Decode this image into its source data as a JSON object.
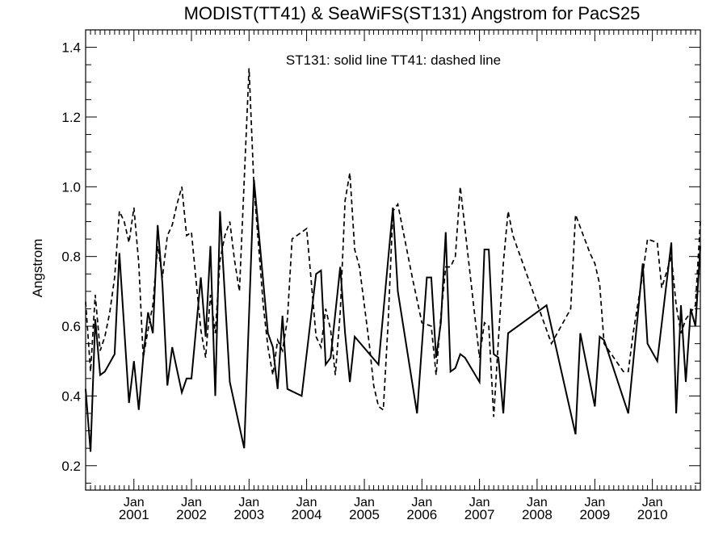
{
  "chart_data": {
    "type": "line",
    "title": "MODIST(TT41) & SeaWiFS(ST131)  Angstrom for PacS25",
    "annotation": "ST131: solid line   TT41: dashed line",
    "ylabel": "Angstrom",
    "xlabel": "",
    "xlim": [
      "2000-03-01",
      "2010-11-01"
    ],
    "ylim": [
      0.13,
      1.45
    ],
    "yticks": [
      0.2,
      0.4,
      0.6,
      0.8,
      1.0,
      1.2,
      1.4
    ],
    "ytick_labels": [
      "0.2",
      "0.4",
      "0.6",
      "0.8",
      "1.0",
      "1.2",
      "1.4"
    ],
    "xticks": [
      {
        "month": "Jan",
        "year": "2001",
        "date": "2001-01-01"
      },
      {
        "month": "Jan",
        "year": "2002",
        "date": "2002-01-01"
      },
      {
        "month": "Jan",
        "year": "2003",
        "date": "2003-01-01"
      },
      {
        "month": "Jan",
        "year": "2004",
        "date": "2004-01-01"
      },
      {
        "month": "Jan",
        "year": "2005",
        "date": "2005-01-01"
      },
      {
        "month": "Jan",
        "year": "2006",
        "date": "2006-01-01"
      },
      {
        "month": "Jan",
        "year": "2007",
        "date": "2007-01-01"
      },
      {
        "month": "Jan",
        "year": "2008",
        "date": "2008-01-01"
      },
      {
        "month": "Jan",
        "year": "2009",
        "date": "2009-01-01"
      },
      {
        "month": "Jan",
        "year": "2010",
        "date": "2010-01-01"
      }
    ],
    "series": [
      {
        "name": "ST131",
        "style": "solid",
        "points": [
          [
            "2000-03-01",
            0.42
          ],
          [
            "2000-04-01",
            0.24
          ],
          [
            "2000-05-01",
            0.62
          ],
          [
            "2000-06-01",
            0.46
          ],
          [
            "2000-07-01",
            0.47
          ],
          [
            "2000-09-01",
            0.52
          ],
          [
            "2000-10-01",
            0.81
          ],
          [
            "2000-12-01",
            0.38
          ],
          [
            "2001-01-01",
            0.5
          ],
          [
            "2001-02-01",
            0.36
          ],
          [
            "2001-03-01",
            0.51
          ],
          [
            "2001-04-01",
            0.64
          ],
          [
            "2001-05-01",
            0.58
          ],
          [
            "2001-06-01",
            0.89
          ],
          [
            "2001-07-01",
            0.72
          ],
          [
            "2001-08-01",
            0.43
          ],
          [
            "2001-09-01",
            0.54
          ],
          [
            "2001-11-01",
            0.41
          ],
          [
            "2001-12-01",
            0.45
          ],
          [
            "2002-01-01",
            0.45
          ],
          [
            "2002-03-01",
            0.74
          ],
          [
            "2002-04-01",
            0.57
          ],
          [
            "2002-05-01",
            0.83
          ],
          [
            "2002-06-01",
            0.4
          ],
          [
            "2002-07-01",
            0.93
          ],
          [
            "2002-09-01",
            0.44
          ],
          [
            "2002-12-01",
            0.25
          ],
          [
            "2003-02-01",
            1.02
          ],
          [
            "2003-05-01",
            0.58
          ],
          [
            "2003-06-01",
            0.54
          ],
          [
            "2003-07-01",
            0.42
          ],
          [
            "2003-08-01",
            0.63
          ],
          [
            "2003-09-01",
            0.42
          ],
          [
            "2003-12-01",
            0.4
          ],
          [
            "2004-03-01",
            0.75
          ],
          [
            "2004-04-01",
            0.76
          ],
          [
            "2004-05-01",
            0.49
          ],
          [
            "2004-06-01",
            0.51
          ],
          [
            "2004-08-01",
            0.77
          ],
          [
            "2004-09-01",
            0.58
          ],
          [
            "2004-10-01",
            0.44
          ],
          [
            "2004-11-01",
            0.57
          ],
          [
            "2005-04-01",
            0.49
          ],
          [
            "2005-07-01",
            0.94
          ],
          [
            "2005-08-01",
            0.7
          ],
          [
            "2005-12-01",
            0.35
          ],
          [
            "2006-02-01",
            0.74
          ],
          [
            "2006-03-01",
            0.74
          ],
          [
            "2006-04-01",
            0.51
          ],
          [
            "2006-05-01",
            0.61
          ],
          [
            "2006-06-01",
            0.87
          ],
          [
            "2006-07-01",
            0.47
          ],
          [
            "2006-08-01",
            0.48
          ],
          [
            "2006-09-01",
            0.52
          ],
          [
            "2006-10-01",
            0.51
          ],
          [
            "2007-01-01",
            0.44
          ],
          [
            "2007-02-01",
            0.82
          ],
          [
            "2007-03-01",
            0.82
          ],
          [
            "2007-04-01",
            0.52
          ],
          [
            "2007-05-01",
            0.51
          ],
          [
            "2007-06-01",
            0.35
          ],
          [
            "2007-07-01",
            0.58
          ],
          [
            "2008-03-01",
            0.66
          ],
          [
            "2008-09-01",
            0.29
          ],
          [
            "2008-10-01",
            0.58
          ],
          [
            "2009-01-01",
            0.37
          ],
          [
            "2009-02-01",
            0.57
          ],
          [
            "2009-03-01",
            0.56
          ],
          [
            "2009-08-01",
            0.35
          ],
          [
            "2009-11-01",
            0.78
          ],
          [
            "2009-12-01",
            0.55
          ],
          [
            "2010-02-01",
            0.5
          ],
          [
            "2010-05-01",
            0.84
          ],
          [
            "2010-06-01",
            0.35
          ],
          [
            "2010-07-01",
            0.66
          ],
          [
            "2010-08-01",
            0.44
          ],
          [
            "2010-09-01",
            0.65
          ],
          [
            "2010-10-01",
            0.6
          ],
          [
            "2010-11-01",
            0.83
          ]
        ]
      },
      {
        "name": "TT41",
        "style": "dashed",
        "points": [
          [
            "2000-03-01",
            0.67
          ],
          [
            "2000-04-01",
            0.47
          ],
          [
            "2000-05-01",
            0.69
          ],
          [
            "2000-06-01",
            0.53
          ],
          [
            "2000-07-01",
            0.57
          ],
          [
            "2000-08-01",
            0.64
          ],
          [
            "2000-09-01",
            0.74
          ],
          [
            "2000-10-01",
            0.93
          ],
          [
            "2000-11-01",
            0.9
          ],
          [
            "2000-12-01",
            0.84
          ],
          [
            "2001-01-01",
            0.94
          ],
          [
            "2001-02-01",
            0.78
          ],
          [
            "2001-03-01",
            0.51
          ],
          [
            "2001-04-01",
            0.59
          ],
          [
            "2001-05-01",
            0.66
          ],
          [
            "2001-06-01",
            0.83
          ],
          [
            "2001-07-01",
            0.74
          ],
          [
            "2001-08-01",
            0.86
          ],
          [
            "2001-09-01",
            0.89
          ],
          [
            "2001-10-01",
            0.95
          ],
          [
            "2001-11-01",
            1.0
          ],
          [
            "2001-12-01",
            0.86
          ],
          [
            "2002-01-01",
            0.87
          ],
          [
            "2002-03-01",
            0.59
          ],
          [
            "2002-04-01",
            0.51
          ],
          [
            "2002-05-01",
            0.69
          ],
          [
            "2002-06-01",
            0.58
          ],
          [
            "2002-07-01",
            0.79
          ],
          [
            "2002-08-01",
            0.86
          ],
          [
            "2002-09-01",
            0.9
          ],
          [
            "2002-10-01",
            0.79
          ],
          [
            "2002-11-01",
            0.7
          ],
          [
            "2003-01-01",
            1.34
          ],
          [
            "2003-02-01",
            1.0
          ],
          [
            "2003-04-01",
            0.66
          ],
          [
            "2003-05-01",
            0.54
          ],
          [
            "2003-06-01",
            0.46
          ],
          [
            "2003-07-01",
            0.56
          ],
          [
            "2003-08-01",
            0.53
          ],
          [
            "2003-09-01",
            0.62
          ],
          [
            "2003-10-01",
            0.85
          ],
          [
            "2004-01-01",
            0.88
          ],
          [
            "2004-03-01",
            0.57
          ],
          [
            "2004-04-01",
            0.54
          ],
          [
            "2004-05-01",
            0.65
          ],
          [
            "2004-06-01",
            0.59
          ],
          [
            "2004-07-01",
            0.46
          ],
          [
            "2004-08-01",
            0.64
          ],
          [
            "2004-09-01",
            0.96
          ],
          [
            "2004-10-01",
            1.04
          ],
          [
            "2004-11-01",
            0.82
          ],
          [
            "2004-12-01",
            0.77
          ],
          [
            "2005-02-01",
            0.55
          ],
          [
            "2005-03-01",
            0.43
          ],
          [
            "2005-04-01",
            0.37
          ],
          [
            "2005-05-01",
            0.36
          ],
          [
            "2005-06-01",
            0.61
          ],
          [
            "2005-07-01",
            0.93
          ],
          [
            "2005-08-01",
            0.95
          ],
          [
            "2005-11-01",
            0.74
          ],
          [
            "2006-01-01",
            0.61
          ],
          [
            "2006-03-01",
            0.6
          ],
          [
            "2006-04-01",
            0.46
          ],
          [
            "2006-05-01",
            0.63
          ],
          [
            "2006-06-01",
            0.77
          ],
          [
            "2006-07-01",
            0.77
          ],
          [
            "2006-08-01",
            0.8
          ],
          [
            "2006-09-01",
            1.0
          ],
          [
            "2007-01-01",
            0.51
          ],
          [
            "2007-02-01",
            0.61
          ],
          [
            "2007-03-01",
            0.6
          ],
          [
            "2007-04-01",
            0.34
          ],
          [
            "2007-05-01",
            0.56
          ],
          [
            "2007-06-01",
            0.78
          ],
          [
            "2007-07-01",
            0.93
          ],
          [
            "2007-08-01",
            0.86
          ],
          [
            "2008-04-01",
            0.55
          ],
          [
            "2008-08-01",
            0.65
          ],
          [
            "2008-09-01",
            0.92
          ],
          [
            "2008-12-01",
            0.81
          ],
          [
            "2009-01-01",
            0.78
          ],
          [
            "2009-02-01",
            0.72
          ],
          [
            "2009-03-01",
            0.55
          ],
          [
            "2009-07-01",
            0.47
          ],
          [
            "2009-08-01",
            0.47
          ],
          [
            "2009-09-01",
            0.58
          ],
          [
            "2009-11-01",
            0.75
          ],
          [
            "2009-12-01",
            0.85
          ],
          [
            "2010-02-01",
            0.84
          ],
          [
            "2010-03-01",
            0.71
          ],
          [
            "2010-05-01",
            0.8
          ],
          [
            "2010-06-01",
            0.66
          ],
          [
            "2010-07-01",
            0.58
          ],
          [
            "2010-08-01",
            0.62
          ],
          [
            "2010-09-01",
            0.64
          ],
          [
            "2010-10-01",
            0.66
          ],
          [
            "2010-11-01",
            0.9
          ]
        ]
      }
    ]
  }
}
